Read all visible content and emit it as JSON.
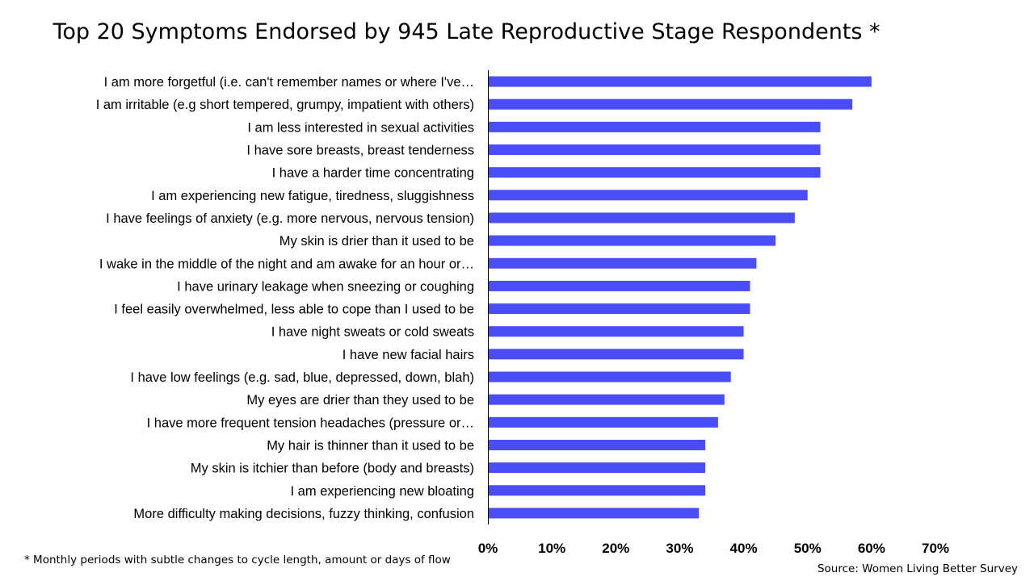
{
  "header": {
    "title": "Top 20 Symptoms Endorsed by 945 Late Reproductive Stage Respondents *"
  },
  "footnote": "* Monthly periods with subtle changes to cycle length, amount or days of flow",
  "source": "Source: Women Living Better Survey",
  "colors": {
    "bar": "#4a4df5"
  },
  "chart_data": {
    "type": "bar",
    "orientation": "horizontal",
    "title": "Top 20 Symptoms Endorsed by 945 Late Reproductive Stage Respondents *",
    "xlim": [
      0,
      70
    ],
    "x_unit": "%",
    "ticks": [
      "0%",
      "10%",
      "20%",
      "30%",
      "40%",
      "50%",
      "60%",
      "70%"
    ],
    "grid": false,
    "categories": [
      "I am more forgetful (i.e. can't remember names or where I've…",
      "I am irritable (e.g short tempered, grumpy, impatient with others)",
      "I am less interested in sexual activities",
      "I have sore breasts, breast tenderness",
      "I have a harder time concentrating",
      "I am experiencing new fatigue, tiredness, sluggishness",
      "I have feelings of anxiety (e.g. more nervous, nervous tension)",
      "My skin is drier than it used to be",
      "I wake in the middle of the night and am awake for an hour or…",
      "I have urinary leakage when sneezing or coughing",
      "I feel easily overwhelmed, less able to cope than I used to be",
      "I have night sweats or cold sweats",
      "I have new facial hairs",
      "I have low feelings (e.g. sad, blue, depressed, down, blah)",
      "My eyes are drier than they used to be",
      "I have more frequent tension headaches (pressure or…",
      "My hair is thinner than it used to be",
      "My skin is itchier than before (body and breasts)",
      "I am experiencing new bloating",
      "More difficulty making decisions,  fuzzy thinking, confusion"
    ],
    "values": [
      60,
      57,
      52,
      52,
      52,
      50,
      48,
      45,
      42,
      41,
      41,
      40,
      40,
      38,
      37,
      36,
      34,
      34,
      34,
      33
    ]
  }
}
